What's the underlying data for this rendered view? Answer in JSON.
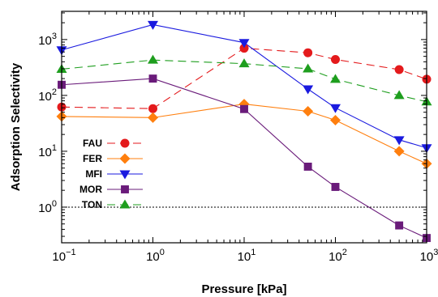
{
  "chart_data": {
    "type": "line",
    "title": "",
    "xlabel": "Pressure [kPa]",
    "ylabel": "Adsorption Selectivity",
    "x_scale": "log",
    "y_scale": "log",
    "xlim": [
      0.1,
      1000
    ],
    "ylim": [
      0.23,
      3200
    ],
    "x_ticks": [
      {
        "value": 0.1,
        "base": "10",
        "exp": "−1"
      },
      {
        "value": 1,
        "base": "10",
        "exp": "0"
      },
      {
        "value": 10,
        "base": "10",
        "exp": "1"
      },
      {
        "value": 100,
        "base": "10",
        "exp": "2"
      },
      {
        "value": 1000,
        "base": "10",
        "exp": "3"
      }
    ],
    "y_ticks": [
      {
        "value": 1,
        "base": "10",
        "exp": "0"
      },
      {
        "value": 10,
        "base": "10",
        "exp": "1"
      },
      {
        "value": 100,
        "base": "10",
        "exp": "2"
      },
      {
        "value": 1000,
        "base": "10",
        "exp": "3"
      }
    ],
    "reference_line": {
      "y": 1,
      "style": "dotted"
    },
    "grid": false,
    "legend_position": "left",
    "series": [
      {
        "name": "FAU",
        "color": "#e41a1c",
        "marker": "circle",
        "dash": "10,6",
        "x": [
          0.1,
          1,
          10,
          50,
          100,
          500,
          1000
        ],
        "y": [
          62,
          58,
          700,
          580,
          440,
          290,
          195
        ]
      },
      {
        "name": "FER",
        "color": "#ff7f0e",
        "marker": "diamond",
        "dash": "",
        "x": [
          0.1,
          1,
          10,
          50,
          100,
          500,
          1000
        ],
        "y": [
          42,
          40,
          70,
          52,
          36,
          10,
          6
        ]
      },
      {
        "name": "MFI",
        "color": "#1a1adf",
        "marker": "triangle-down",
        "dash": "",
        "x": [
          0.1,
          1,
          10,
          50,
          100,
          500,
          1000
        ],
        "y": [
          650,
          1850,
          880,
          130,
          60,
          16,
          11.5
        ]
      },
      {
        "name": "MOR",
        "color": "#6a1b7a",
        "marker": "square",
        "dash": "",
        "x": [
          0.1,
          1,
          10,
          50,
          100,
          500,
          1000
        ],
        "y": [
          155,
          200,
          57,
          5.3,
          2.3,
          0.47,
          0.28
        ]
      },
      {
        "name": "TON",
        "color": "#1e9e1e",
        "marker": "triangle-up",
        "dash": "10,6",
        "x": [
          0.1,
          1,
          10,
          50,
          100,
          500,
          1000
        ],
        "y": [
          295,
          430,
          370,
          300,
          195,
          100,
          77
        ]
      }
    ]
  }
}
